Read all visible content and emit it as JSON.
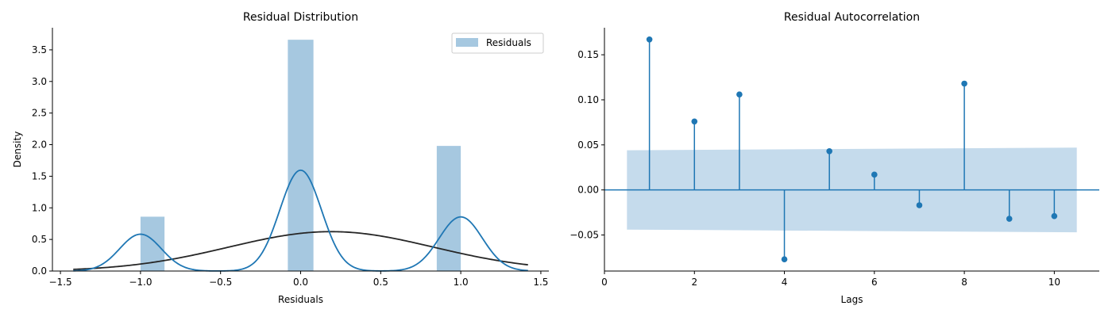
{
  "chart_data": [
    {
      "type": "bar",
      "title": "Residual Distribution",
      "xlabel": "Residuals",
      "ylabel": "Density",
      "xlim": [
        -1.55,
        1.55
      ],
      "ylim": [
        0,
        3.85
      ],
      "xticks": [
        -1.5,
        -1.0,
        -0.5,
        0.0,
        0.5,
        1.0,
        1.5
      ],
      "xtick_labels": [
        "−1.5",
        "−1.0",
        "−0.5",
        "0.0",
        "0.5",
        "1.0",
        "1.5"
      ],
      "yticks": [
        0.0,
        0.5,
        1.0,
        1.5,
        2.0,
        2.5,
        3.0,
        3.5
      ],
      "ytick_labels": [
        "0.0",
        "0.5",
        "1.0",
        "1.5",
        "2.0",
        "2.5",
        "3.0",
        "3.5"
      ],
      "histogram": {
        "name": "Residuals",
        "color": "#a6c8e0",
        "bins": [
          {
            "x0": -1.0,
            "x1": -0.85,
            "density": 0.86
          },
          {
            "x0": -0.08,
            "x1": 0.08,
            "density": 3.66
          },
          {
            "x0": 0.85,
            "x1": 1.0,
            "density": 1.98
          }
        ]
      },
      "kde": {
        "color": "#1f77b4",
        "components": [
          {
            "weight": 0.19,
            "mean": -1.0,
            "sd": 0.13
          },
          {
            "weight": 0.52,
            "mean": 0.0,
            "sd": 0.13
          },
          {
            "weight": 0.29,
            "mean": 1.0,
            "sd": 0.135
          }
        ],
        "range": [
          -1.42,
          1.42
        ]
      },
      "normal_fit": {
        "color": "#262626",
        "mean": 0.19,
        "sd": 0.64,
        "range": [
          -1.42,
          1.42
        ]
      },
      "legend": {
        "placement": "top-right",
        "entries": [
          "Residuals"
        ]
      },
      "grid": false
    },
    {
      "type": "stem",
      "title": "Residual Autocorrelation",
      "xlabel": "Lags",
      "ylabel": "",
      "xlim": [
        0,
        11
      ],
      "ylim": [
        -0.09,
        0.18
      ],
      "xticks": [
        0,
        2,
        4,
        6,
        8,
        10
      ],
      "xtick_labels": [
        "0",
        "2",
        "4",
        "6",
        "8",
        "10"
      ],
      "yticks": [
        -0.05,
        0.0,
        0.05,
        0.1,
        0.15
      ],
      "ytick_labels": [
        "−0.05",
        "0.00",
        "0.05",
        "0.10",
        "0.15"
      ],
      "lags": [
        1,
        2,
        3,
        4,
        5,
        6,
        7,
        8,
        9,
        10
      ],
      "values": [
        0.167,
        0.076,
        0.106,
        -0.077,
        0.043,
        0.017,
        -0.017,
        0.118,
        -0.032,
        -0.029
      ],
      "confidence_band": {
        "color": "#c5dbec",
        "x": [
          0.5,
          10.5
        ],
        "upper": [
          0.044,
          0.047
        ],
        "lower": [
          -0.044,
          -0.047
        ]
      },
      "baseline": 0.0,
      "color": "#1f77b4",
      "grid": false
    }
  ]
}
